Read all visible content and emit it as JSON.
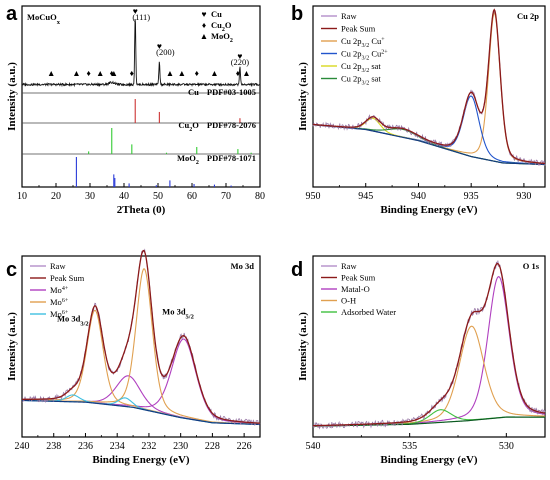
{
  "figure": {
    "panels": [
      {
        "letter": "a",
        "title": "MoCuO",
        "title_sub": "x"
      },
      {
        "letter": "b",
        "title": "Cu 2p"
      },
      {
        "letter": "c",
        "title": "Mo 3d"
      },
      {
        "letter": "d",
        "title": "O 1s"
      }
    ]
  },
  "chart_data": [
    {
      "panel": "a",
      "type": "line",
      "xlabel": "2Theta (0)",
      "ylabel": "Intensity (a.u.)",
      "xlim": [
        10,
        80
      ],
      "xticks": [
        "10",
        "20",
        "30",
        "40",
        "50",
        "60",
        "70",
        "80"
      ],
      "title": "MoCuO",
      "title_sub": "x",
      "legend": [
        {
          "symbol": "♥",
          "label": "Cu",
          "color": "#8b1a1a"
        },
        {
          "symbol": "♦",
          "label": "Cu",
          "label_sub": "2",
          "label_tail": "O",
          "color": "#33cc33"
        },
        {
          "symbol": "▲",
          "label": "MoO",
          "label_sub": "2",
          "label_tail": "",
          "color": "#1f2fd6"
        }
      ],
      "peak_labels": [
        {
          "x": 43.3,
          "text": "(111)"
        },
        {
          "x": 50.4,
          "text": "(200)"
        },
        {
          "x": 74.1,
          "text": "(220)"
        }
      ],
      "pattern": [
        [
          10,
          0.05
        ],
        [
          20,
          0.05
        ],
        [
          25,
          0.06
        ],
        [
          30,
          0.07
        ],
        [
          36.4,
          0.1
        ],
        [
          42.5,
          0.08
        ],
        [
          43.3,
          1.0
        ],
        [
          44,
          0.08
        ],
        [
          50.4,
          0.32
        ],
        [
          52,
          0.07
        ],
        [
          60,
          0.06
        ],
        [
          70,
          0.05
        ],
        [
          74.1,
          0.25
        ],
        [
          80,
          0.05
        ]
      ],
      "references": [
        {
          "name": "Cu",
          "pdf": "PDF#03-1005",
          "color": "#cc3333",
          "lines": [
            [
              43.3,
              1.0
            ],
            [
              50.4,
              0.46
            ],
            [
              74.1,
              0.2
            ]
          ]
        },
        {
          "name": "Cu",
          "name_sub": "2",
          "name_tail": "O",
          "pdf": "PDF#78-2076",
          "color": "#33cc33",
          "lines": [
            [
              29.6,
              0.1
            ],
            [
              36.4,
              1.0
            ],
            [
              42.3,
              0.37
            ],
            [
              52.5,
              0.05
            ],
            [
              61.4,
              0.27
            ],
            [
              73.5,
              0.19
            ],
            [
              77.4,
              0.05
            ]
          ]
        },
        {
          "name": "MoO",
          "name_sub": "2",
          "name_tail": "",
          "pdf": "PDF#78-1071",
          "color": "#2a3ad9",
          "lines": [
            [
              26.0,
              1.0
            ],
            [
              37.0,
              0.42
            ],
            [
              37.3,
              0.3
            ],
            [
              41.5,
              0.12
            ],
            [
              49.5,
              0.06
            ],
            [
              53.5,
              0.22
            ],
            [
              60.6,
              0.1
            ],
            [
              66.6,
              0.08
            ],
            [
              71.5,
              0.05
            ]
          ]
        }
      ],
      "markers": [
        {
          "x": 18.6,
          "sym": "▲",
          "color": "#1f2fd6"
        },
        {
          "x": 26.0,
          "sym": "▲",
          "color": "#1f2fd6"
        },
        {
          "x": 29.6,
          "sym": "♦",
          "color": "#33cc33"
        },
        {
          "x": 33.0,
          "sym": "▲",
          "color": "#1f2fd6"
        },
        {
          "x": 36.4,
          "sym": "♦",
          "color": "#33cc33"
        },
        {
          "x": 37.0,
          "sym": "▲",
          "color": "#1f2fd6"
        },
        {
          "x": 42.3,
          "sym": "♦",
          "color": "#33cc33"
        },
        {
          "x": 53.5,
          "sym": "▲",
          "color": "#1f2fd6"
        },
        {
          "x": 57.0,
          "sym": "▲",
          "color": "#1f2fd6"
        },
        {
          "x": 61.4,
          "sym": "♦",
          "color": "#33cc33"
        },
        {
          "x": 66.6,
          "sym": "▲",
          "color": "#1f2fd6"
        },
        {
          "x": 73.5,
          "sym": "♦",
          "color": "#33cc33"
        },
        {
          "x": 76.0,
          "sym": "▲",
          "color": "#1f2fd6"
        }
      ]
    },
    {
      "panel": "b",
      "type": "line",
      "xlabel": "Binding Energy (eV)",
      "ylabel": "Intensity (a.u.)",
      "xlim": [
        950,
        928
      ],
      "xticks": [
        "950",
        "945",
        "940",
        "935",
        "930"
      ],
      "legend": [
        {
          "label": "Raw",
          "color": "#b48fc9"
        },
        {
          "label": "Peak Sum",
          "color": "#8b1a1a"
        },
        {
          "label": "Cu 2p",
          "label_sub": "3/2",
          "label_tail": " Cu",
          "label_sup": "+",
          "color": "#e0a050"
        },
        {
          "label": "Cu 2p",
          "label_sub": "3/2",
          "label_tail": " Cu",
          "label_sup": "2+",
          "color": "#2255cc"
        },
        {
          "label": "Cu 2p",
          "label_sub": "3/2",
          "label_tail": " sat",
          "color": "#d8d820"
        },
        {
          "label": "Cu 2p",
          "label_sub": "3/2",
          "label_tail": " sat",
          "color": "#2a8a3a"
        }
      ],
      "background": [
        [
          950,
          0.3
        ],
        [
          945,
          0.27
        ],
        [
          940,
          0.2
        ],
        [
          935,
          0.1
        ],
        [
          932,
          0.06
        ],
        [
          928,
          0.05
        ]
      ],
      "components": [
        {
          "name": "Cu+",
          "center": 932.8,
          "fwhm": 1.3,
          "height": 0.93,
          "color": "#e0a050"
        },
        {
          "name": "Cu2+",
          "center": 935.0,
          "fwhm": 1.8,
          "height": 0.38,
          "color": "#2255cc"
        },
        {
          "name": "sat1",
          "center": 944.3,
          "fwhm": 1.6,
          "height": 0.08,
          "color": "#d8d820"
        },
        {
          "name": "sat2",
          "center": 941.5,
          "fwhm": 3.2,
          "height": 0.05,
          "color": "#2a8a3a"
        }
      ]
    },
    {
      "panel": "c",
      "type": "line",
      "xlabel": "Binding Energy (eV)",
      "ylabel": "Intensity (a.u.)",
      "xlim": [
        240,
        225
      ],
      "xticks": [
        "240",
        "238",
        "236",
        "234",
        "232",
        "230",
        "228",
        "226"
      ],
      "title": "Mo 3d",
      "legend": [
        {
          "label": "Raw",
          "color": "#b48fc9"
        },
        {
          "label": "Peak Sum",
          "color": "#8b1a1a"
        },
        {
          "label": "Mo",
          "label_sup": "4+",
          "color": "#b040c0"
        },
        {
          "label": "Mo",
          "label_sup": "6+",
          "color": "#e0a050"
        },
        {
          "label": "Mo",
          "label_sup": "6+",
          "color": "#40c0e0"
        }
      ],
      "annotations": [
        {
          "label": "Mo 3d",
          "label_sub": "3/2",
          "x": 235.4
        },
        {
          "label": "Mo 3d",
          "label_sub": "5/2",
          "x": 232.3
        }
      ],
      "background": [
        [
          240,
          0.16
        ],
        [
          236,
          0.15
        ],
        [
          233,
          0.12
        ],
        [
          230,
          0.06
        ],
        [
          228,
          0.03
        ],
        [
          225,
          0.02
        ]
      ],
      "components": [
        {
          "name": "Mo4+ a",
          "center": 233.3,
          "fwhm": 1.8,
          "height": 0.18,
          "color": "#b040c0"
        },
        {
          "name": "Mo4+ b",
          "center": 229.8,
          "fwhm": 1.8,
          "height": 0.46,
          "color": "#b040c0"
        },
        {
          "name": "Mo6+ a",
          "center": 235.4,
          "fwhm": 1.2,
          "height": 0.54,
          "color": "#e0a050"
        },
        {
          "name": "Mo6+ b",
          "center": 232.3,
          "fwhm": 1.2,
          "height": 0.82,
          "color": "#e0a050"
        },
        {
          "name": "Mo6+ c",
          "center": 236.8,
          "fwhm": 1.0,
          "height": 0.04,
          "color": "#40c0e0"
        },
        {
          "name": "Mo6+ d",
          "center": 233.5,
          "fwhm": 1.0,
          "height": 0.05,
          "color": "#40c0e0"
        }
      ]
    },
    {
      "panel": "d",
      "type": "line",
      "xlabel": "Binding Energy (eV)",
      "ylabel": "Intensity (a.u.)",
      "xlim": [
        540,
        528
      ],
      "xticks": [
        "540",
        "535",
        "530"
      ],
      "title": "O 1s",
      "legend": [
        {
          "label": "Raw",
          "color": "#b48fc9"
        },
        {
          "label": "Peak Sum",
          "color": "#8b1a1a"
        },
        {
          "label": "Matal-O",
          "color": "#b040c0"
        },
        {
          "label": "O-H",
          "color": "#e0a050"
        },
        {
          "label": "Adsorbed Water",
          "color": "#40c040"
        }
      ],
      "background": [
        [
          540,
          0.03
        ],
        [
          535,
          0.04
        ],
        [
          532,
          0.06
        ],
        [
          530,
          0.08
        ],
        [
          528,
          0.08
        ]
      ],
      "components": [
        {
          "name": "Matal-O",
          "center": 530.4,
          "fwhm": 1.3,
          "height": 0.78,
          "color": "#b040c0"
        },
        {
          "name": "O-H",
          "center": 531.8,
          "fwhm": 1.5,
          "height": 0.52,
          "color": "#e0a050"
        },
        {
          "name": "Adsorbed Water",
          "center": 533.4,
          "fwhm": 1.3,
          "height": 0.07,
          "color": "#40c040"
        }
      ]
    }
  ]
}
